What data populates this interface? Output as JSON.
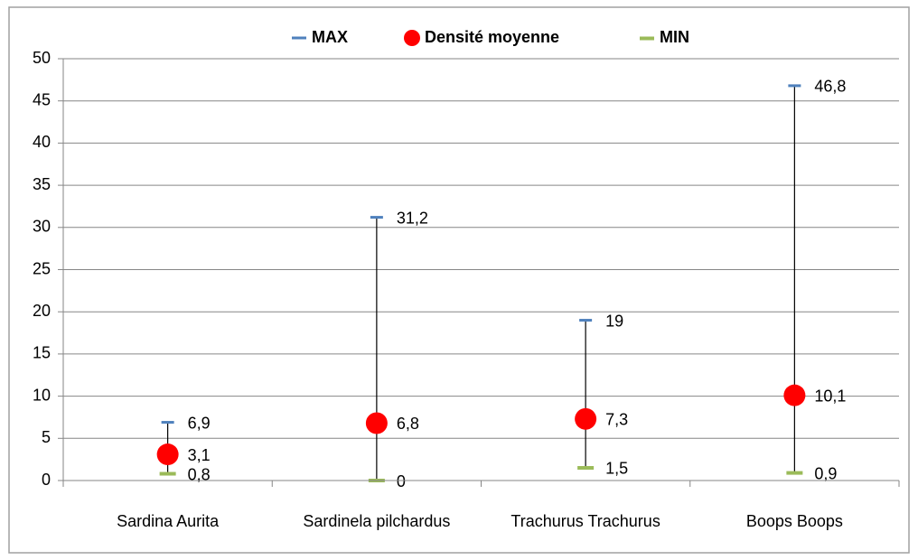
{
  "chart_data": {
    "type": "hilo",
    "categories": [
      "Sardina Aurita",
      "Sardinela pilchardus",
      "Trachurus Trachurus",
      "Boops Boops"
    ],
    "series": [
      {
        "name": "MAX",
        "color": "#4f81bd",
        "values": [
          6.9,
          31.2,
          19,
          46.8
        ],
        "value_labels": [
          "6,9",
          "31,2",
          "19",
          "46,8"
        ]
      },
      {
        "name": "Densité moyenne",
        "color": "#ff0000",
        "values": [
          3.1,
          6.8,
          7.3,
          10.1
        ],
        "value_labels": [
          "3,1",
          "6,8",
          "7,3",
          "10,1"
        ]
      },
      {
        "name": "MIN",
        "color": "#9bbb59",
        "values": [
          0.8,
          0,
          1.5,
          0.9
        ],
        "value_labels": [
          "0,8",
          "0",
          "1,5",
          "0,9"
        ]
      }
    ],
    "ylim": [
      0,
      50
    ],
    "yticks": [
      0,
      5,
      10,
      15,
      20,
      25,
      30,
      35,
      40,
      45,
      50
    ],
    "grid": true,
    "legend": "top"
  }
}
